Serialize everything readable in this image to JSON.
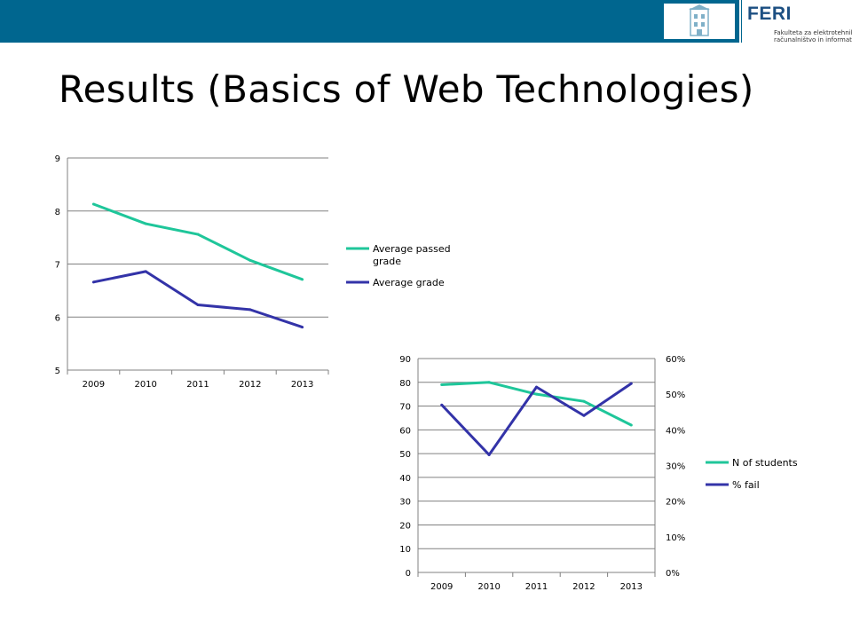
{
  "header": {
    "logo_word": "FERI",
    "logo_subtitle_line1": "Fakulteta za elektrotehniko,",
    "logo_subtitle_line2": "računalništvo in informatiko"
  },
  "slide": {
    "title": "Results (Basics of Web Technologies)"
  },
  "colors": {
    "topbar": "#00668f",
    "series_teal": "#1fc69a",
    "series_blue": "#3333a8",
    "grid": "#808080"
  },
  "chart_data": [
    {
      "type": "line",
      "title": "",
      "categories": [
        "2009",
        "2010",
        "2011",
        "2012",
        "2013"
      ],
      "ylim": [
        5,
        9
      ],
      "yticks": [
        5,
        6,
        7,
        8,
        9
      ],
      "grid": true,
      "legend": "right",
      "series": [
        {
          "name": "Average  passed grade",
          "color": "#1fc69a",
          "values": [
            8.13,
            7.76,
            7.56,
            7.07,
            6.71
          ]
        },
        {
          "name": "Average   grade",
          "color": "#3333a8",
          "values": [
            6.66,
            6.86,
            6.23,
            6.14,
            5.81
          ]
        }
      ]
    },
    {
      "type": "line",
      "title": "",
      "categories": [
        "2009",
        "2010",
        "2011",
        "2012",
        "2013"
      ],
      "ylim": [
        0,
        90
      ],
      "yticks": [
        0,
        10,
        20,
        30,
        40,
        50,
        60,
        70,
        80,
        90
      ],
      "y2lim": [
        0,
        0.6
      ],
      "y2ticks": [
        "0%",
        "10%",
        "20%",
        "30%",
        "40%",
        "50%",
        "60%"
      ],
      "grid": true,
      "legend": "right",
      "series": [
        {
          "name": "N of students",
          "axis": "left",
          "color": "#1fc69a",
          "values": [
            79,
            80,
            75,
            72,
            62
          ]
        },
        {
          "name": "% fail",
          "axis": "right",
          "color": "#3333a8",
          "values": [
            0.47,
            0.33,
            0.52,
            0.44,
            0.53
          ]
        }
      ]
    }
  ]
}
